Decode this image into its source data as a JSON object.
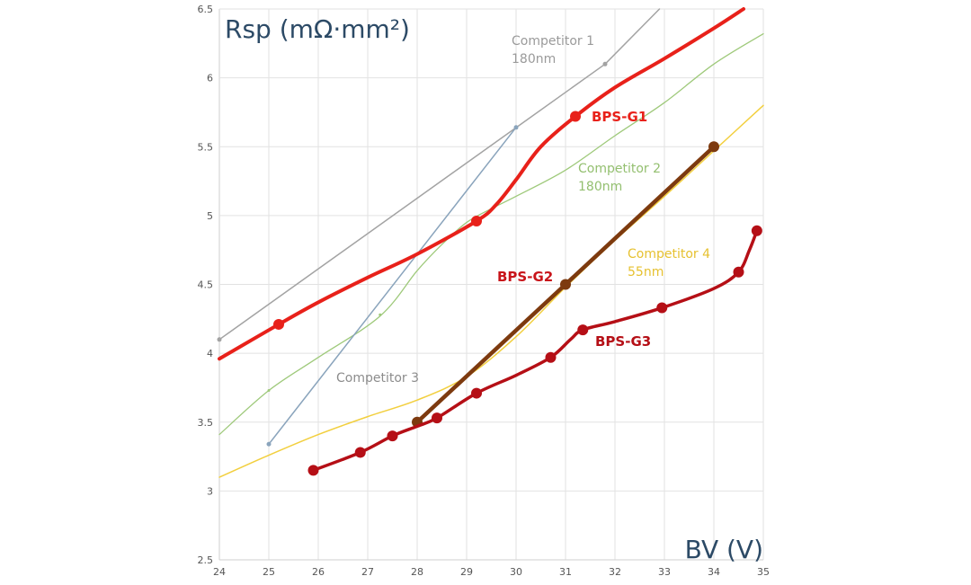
{
  "chart_data": {
    "type": "line",
    "ylabel": "Rsp (mΩ·mm²)",
    "xlabel": "BV (V)",
    "xlim": [
      24,
      35
    ],
    "ylim": [
      2.5,
      6.5
    ],
    "x_ticks": [
      "24",
      "25",
      "26",
      "27",
      "28",
      "29",
      "30",
      "31",
      "32",
      "33",
      "34",
      "35"
    ],
    "y_ticks": [
      "2.5",
      "3",
      "3.5",
      "4",
      "4.5",
      "5",
      "5.5",
      "6",
      "6.5"
    ],
    "grid": true,
    "series": [
      {
        "name": "Competitor 1",
        "sublabel": "180nm",
        "color": "#a3a3a3",
        "width": 1.5,
        "marker_radius": 2.5,
        "points": [
          [
            24.0,
            4.1
          ],
          [
            31.8,
            6.1
          ],
          [
            32.9,
            6.5
          ]
        ],
        "markers": [
          [
            24.0,
            4.1
          ],
          [
            31.8,
            6.1
          ]
        ]
      },
      {
        "name": "Competitor 2",
        "sublabel": "180nm",
        "color": "#9ec97a",
        "width": 1.3,
        "marker_radius": 1.5,
        "points": [
          [
            24.0,
            3.41
          ],
          [
            25.0,
            3.73
          ],
          [
            26.0,
            3.97
          ],
          [
            27.25,
            4.27
          ],
          [
            28.0,
            4.6
          ],
          [
            28.5,
            4.79
          ],
          [
            29.0,
            4.95
          ],
          [
            29.5,
            5.05
          ],
          [
            30.0,
            5.14
          ],
          [
            31.0,
            5.33
          ],
          [
            32.0,
            5.58
          ],
          [
            33.0,
            5.82
          ],
          [
            34.0,
            6.1
          ],
          [
            35.0,
            6.32
          ]
        ],
        "markers": [
          [
            25.0,
            3.73
          ],
          [
            27.25,
            4.28
          ]
        ]
      },
      {
        "name": "Competitor 3",
        "sublabel": "",
        "color": "#8aa4bc",
        "width": 1.5,
        "marker_radius": 2.5,
        "points": [
          [
            25.0,
            3.34
          ],
          [
            30.0,
            5.64
          ]
        ],
        "markers": [
          [
            25.0,
            3.34
          ],
          [
            30.0,
            5.64
          ]
        ]
      },
      {
        "name": "Competitor 4",
        "sublabel": "55nm",
        "color": "#f2cf3e",
        "width": 1.5,
        "marker_radius": 0,
        "points": [
          [
            24.0,
            3.1
          ],
          [
            25.0,
            3.26
          ],
          [
            26.0,
            3.41
          ],
          [
            27.0,
            3.54
          ],
          [
            28.0,
            3.66
          ],
          [
            29.0,
            3.83
          ],
          [
            30.0,
            4.12
          ],
          [
            31.0,
            4.48
          ],
          [
            32.0,
            4.82
          ],
          [
            33.0,
            5.14
          ],
          [
            34.0,
            5.47
          ],
          [
            35.0,
            5.8
          ]
        ],
        "markers": []
      },
      {
        "name": "BPS-G1",
        "sublabel": "",
        "color": "#e8211a",
        "width": 4,
        "marker_radius": 6,
        "points": [
          [
            24.0,
            3.96
          ],
          [
            25.2,
            4.21
          ],
          [
            26.0,
            4.37
          ],
          [
            27.0,
            4.55
          ],
          [
            28.0,
            4.72
          ],
          [
            29.2,
            4.96
          ],
          [
            29.6,
            5.08
          ],
          [
            30.0,
            5.26
          ],
          [
            30.5,
            5.5
          ],
          [
            31.2,
            5.72
          ],
          [
            32.0,
            5.93
          ],
          [
            33.0,
            6.14
          ],
          [
            34.0,
            6.36
          ],
          [
            34.6,
            6.5
          ]
        ],
        "markers": [
          [
            25.2,
            4.21
          ],
          [
            29.2,
            4.96
          ],
          [
            31.2,
            5.72
          ]
        ]
      },
      {
        "name": "BPS-G2",
        "sublabel": "",
        "color": "#7d3a0f",
        "width": 4.5,
        "marker_radius": 6,
        "points": [
          [
            28.0,
            3.5
          ],
          [
            31.0,
            4.5
          ],
          [
            34.0,
            5.5
          ]
        ],
        "markers": [
          [
            28.0,
            3.5
          ],
          [
            31.0,
            4.5
          ],
          [
            34.0,
            5.5
          ]
        ]
      },
      {
        "name": "BPS-G3",
        "sublabel": "",
        "color": "#b50f16",
        "width": 3.5,
        "marker_radius": 6,
        "points": [
          [
            25.9,
            3.15
          ],
          [
            26.85,
            3.28
          ],
          [
            27.5,
            3.4
          ],
          [
            28.0,
            3.47
          ],
          [
            28.4,
            3.53
          ],
          [
            29.2,
            3.71
          ],
          [
            30.0,
            3.84
          ],
          [
            30.7,
            3.97
          ],
          [
            31.1,
            4.1
          ],
          [
            31.35,
            4.17
          ],
          [
            32.0,
            4.23
          ],
          [
            32.95,
            4.33
          ],
          [
            34.0,
            4.47
          ],
          [
            34.5,
            4.59
          ],
          [
            34.72,
            4.75
          ],
          [
            34.87,
            4.89
          ]
        ],
        "markers": [
          [
            25.9,
            3.15
          ],
          [
            26.85,
            3.28
          ],
          [
            27.5,
            3.4
          ],
          [
            28.4,
            3.53
          ],
          [
            29.2,
            3.71
          ],
          [
            30.7,
            3.97
          ],
          [
            31.35,
            4.17
          ],
          [
            32.95,
            4.33
          ],
          [
            34.5,
            4.59
          ],
          [
            34.87,
            4.89
          ]
        ]
      }
    ]
  }
}
